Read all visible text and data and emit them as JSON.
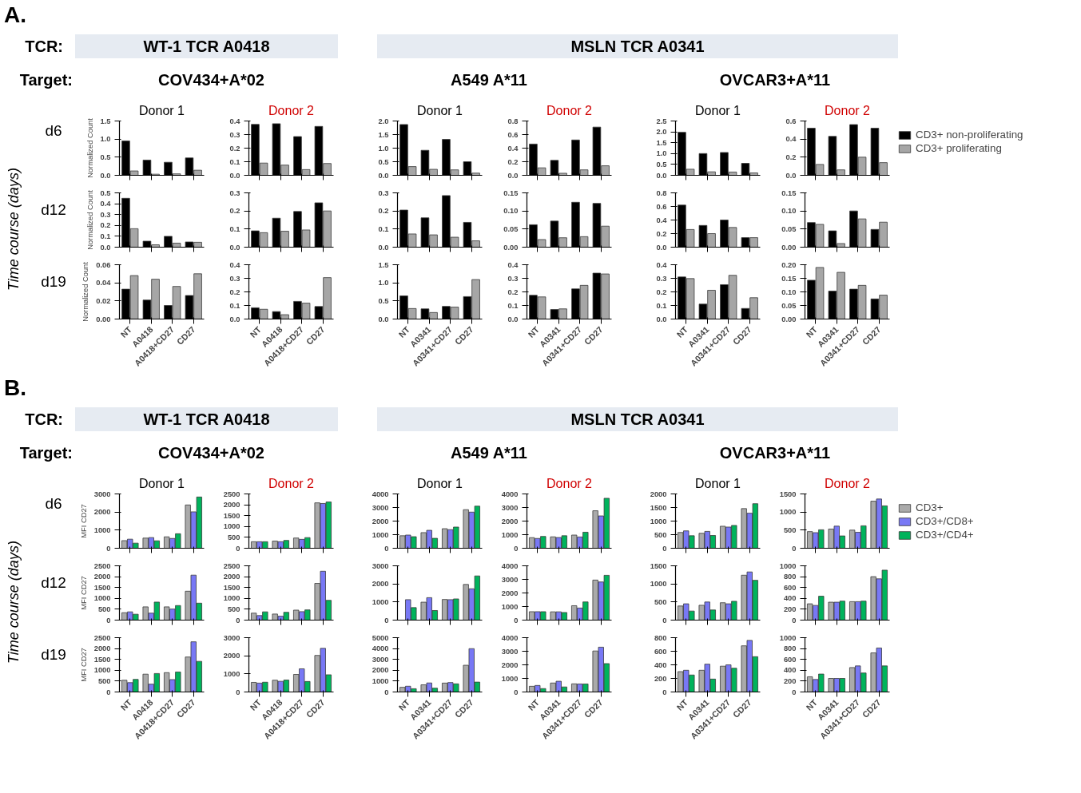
{
  "chart_data": [
    {
      "type": "bar",
      "title": "Donor 1",
      "ylabel": "Normalized Count",
      "categories": [
        null,
        null,
        null,
        null
      ],
      "series": [
        {
          "color": "#000000",
          "values": [
            0.95,
            0.42,
            0.36,
            0.48
          ]
        },
        {
          "color": "#a6a6a6",
          "values": [
            0.12,
            0.03,
            0.04,
            0.14
          ]
        }
      ],
      "ylim": [
        0,
        1.5
      ],
      "yticks": [
        {
          "value": 0,
          "label": "0.0"
        },
        0.5,
        {
          "value": 1,
          "label": "1.0"
        },
        1.5
      ],
      "tick_labels": "y",
      "annotations": [
        "A.",
        "TCR:",
        "WT-1 TCR A0418",
        "MSLN TCR A0341",
        "Target:",
        "COV434+A*02",
        "A549 A*11",
        "OVCAR3+A*11",
        "Time course (days)",
        "d6",
        "d12",
        "d19"
      ]
    },
    {
      "type": "bar",
      "title": "Donor 2",
      "categories": [
        null,
        null,
        null,
        null
      ],
      "series": [
        {
          "color": "#000000",
          "values": [
            0.375,
            0.38,
            0.285,
            0.36
          ]
        },
        {
          "color": "#a6a6a6",
          "values": [
            0.09,
            0.075,
            0.042,
            0.087
          ]
        }
      ],
      "ylim": [
        0,
        0.4
      ],
      "yticks": [
        {
          "value": 0,
          "label": "0.0"
        },
        0.1,
        0.2,
        0.3,
        0.4
      ],
      "tick_labels": "y"
    },
    {
      "type": "bar",
      "title": "Donor 1",
      "categories": [
        null,
        null,
        null,
        null
      ],
      "series": [
        {
          "color": "#000000",
          "values": [
            1.87,
            0.92,
            1.32,
            0.5
          ]
        },
        {
          "color": "#a6a6a6",
          "values": [
            0.32,
            0.22,
            0.2,
            0.08
          ]
        }
      ],
      "ylim": [
        0,
        2
      ],
      "yticks": [
        {
          "value": 0,
          "label": "0.0"
        },
        0.5,
        {
          "value": 1,
          "label": "1.0"
        },
        1.5,
        {
          "value": 2,
          "label": "2.0"
        }
      ],
      "tick_labels": "y"
    },
    {
      "type": "bar",
      "title": "Donor 2",
      "categories": [
        null,
        null,
        null,
        null
      ],
      "series": [
        {
          "color": "#000000",
          "values": [
            0.46,
            0.22,
            0.52,
            0.71
          ]
        },
        {
          "color": "#a6a6a6",
          "values": [
            0.11,
            0.03,
            0.08,
            0.14
          ]
        }
      ],
      "ylim": [
        0,
        0.8
      ],
      "yticks": [
        {
          "value": 0,
          "label": "0.0"
        },
        0.2,
        0.4,
        0.6,
        0.8
      ],
      "tick_labels": "y"
    },
    {
      "type": "bar",
      "title": "Donor 1",
      "categories": [
        null,
        null,
        null,
        null
      ],
      "series": [
        {
          "color": "#000000",
          "values": [
            1.98,
            1.0,
            1.05,
            0.55
          ]
        },
        {
          "color": "#a6a6a6",
          "values": [
            0.28,
            0.16,
            0.15,
            0.11
          ]
        }
      ],
      "ylim": [
        0,
        2.5
      ],
      "yticks": [
        {
          "value": 0,
          "label": "0.0"
        },
        0.5,
        {
          "value": 1,
          "label": "1.0"
        },
        1.5,
        {
          "value": 2,
          "label": "2.0"
        },
        2.5
      ],
      "tick_labels": "y"
    },
    {
      "type": "bar",
      "title": "Donor 2",
      "legend": "right",
      "categories": [
        null,
        null,
        null,
        null
      ],
      "series": [
        {
          "name": "CD3+ non-proliferating",
          "color": "#000000",
          "values": [
            0.52,
            0.43,
            0.56,
            0.52
          ]
        },
        {
          "name": "CD3+ proliferating",
          "color": "#a6a6a6",
          "values": [
            0.12,
            0.06,
            0.2,
            0.14
          ]
        }
      ],
      "ylim": [
        0,
        0.6
      ],
      "yticks": [
        {
          "value": 0,
          "label": "0.0"
        },
        0.2,
        0.4,
        0.6
      ],
      "tick_labels": "y"
    },
    {
      "type": "bar",
      "ylabel": "Normalized Count",
      "categories": [
        null,
        null,
        null,
        null
      ],
      "series": [
        {
          "color": "#000000",
          "values": [
            0.45,
            0.055,
            0.1,
            0.048
          ]
        },
        {
          "color": "#a6a6a6",
          "values": [
            0.17,
            0.022,
            0.037,
            0.045
          ]
        }
      ],
      "ylim": [
        0,
        0.5
      ],
      "yticks": [
        {
          "value": 0,
          "label": "0.0"
        },
        0.1,
        0.2,
        0.3,
        0.4,
        0.5
      ],
      "tick_labels": "y"
    },
    {
      "type": "bar",
      "categories": [
        null,
        null,
        null,
        null
      ],
      "series": [
        {
          "color": "#000000",
          "values": [
            0.09,
            0.16,
            0.197,
            0.245
          ]
        },
        {
          "color": "#a6a6a6",
          "values": [
            0.08,
            0.088,
            0.095,
            0.2
          ]
        }
      ],
      "ylim": [
        0,
        0.3
      ],
      "yticks": [
        {
          "value": 0,
          "label": "0.0"
        },
        0.1,
        0.2,
        0.3
      ],
      "tick_labels": "y"
    },
    {
      "type": "bar",
      "categories": [
        null,
        null,
        null,
        null
      ],
      "series": [
        {
          "color": "#000000",
          "values": [
            0.205,
            0.162,
            0.285,
            0.137
          ]
        },
        {
          "color": "#a6a6a6",
          "values": [
            0.073,
            0.068,
            0.055,
            0.035
          ]
        }
      ],
      "ylim": [
        0,
        0.3
      ],
      "yticks": [
        {
          "value": 0,
          "label": "0.0"
        },
        0.1,
        0.2,
        0.3
      ],
      "tick_labels": "y"
    },
    {
      "type": "bar",
      "categories": [
        null,
        null,
        null,
        null
      ],
      "series": [
        {
          "color": "#000000",
          "values": [
            0.062,
            0.072,
            0.124,
            0.121
          ]
        },
        {
          "color": "#a6a6a6",
          "values": [
            0.021,
            0.026,
            0.029,
            0.058
          ]
        }
      ],
      "ylim": [
        0,
        0.15
      ],
      "yticks": [
        {
          "value": 0,
          "label": "0.00"
        },
        0.05,
        {
          "value": 0.1,
          "label": "0.10"
        },
        0.15
      ],
      "tick_labels": "y"
    },
    {
      "type": "bar",
      "categories": [
        null,
        null,
        null,
        null
      ],
      "series": [
        {
          "color": "#000000",
          "values": [
            0.62,
            0.32,
            0.4,
            0.14
          ]
        },
        {
          "color": "#a6a6a6",
          "values": [
            0.26,
            0.2,
            0.29,
            0.14
          ]
        }
      ],
      "ylim": [
        0,
        0.8
      ],
      "yticks": [
        {
          "value": 0,
          "label": "0.0"
        },
        0.2,
        0.4,
        0.6,
        0.8
      ],
      "tick_labels": "y"
    },
    {
      "type": "bar",
      "categories": [
        null,
        null,
        null,
        null
      ],
      "series": [
        {
          "color": "#000000",
          "values": [
            0.068,
            0.045,
            0.1,
            0.049
          ]
        },
        {
          "color": "#a6a6a6",
          "values": [
            0.063,
            0.01,
            0.078,
            0.069
          ]
        }
      ],
      "ylim": [
        0,
        0.15
      ],
      "yticks": [
        {
          "value": 0,
          "label": "0.00"
        },
        0.05,
        {
          "value": 0.1,
          "label": "0.10"
        },
        0.15
      ],
      "tick_labels": "y"
    },
    {
      "type": "bar",
      "ylabel": "Normalized Count",
      "categories": [
        "NT",
        "A0418",
        "A0418+CD27",
        "CD27"
      ],
      "series": [
        {
          "color": "#000000",
          "values": [
            0.033,
            0.021,
            0.015,
            0.026
          ]
        },
        {
          "color": "#a6a6a6",
          "values": [
            0.048,
            0.044,
            0.036,
            0.05
          ]
        }
      ],
      "ylim": [
        0,
        0.06
      ],
      "yticks": [
        {
          "value": 0,
          "label": "0.00"
        },
        0.02,
        0.04,
        0.06
      ]
    },
    {
      "type": "bar",
      "categories": [
        "NT",
        "A0418",
        "A0418+CD27",
        "CD27"
      ],
      "series": [
        {
          "color": "#000000",
          "values": [
            0.083,
            0.055,
            0.13,
            0.092
          ]
        },
        {
          "color": "#a6a6a6",
          "values": [
            0.072,
            0.032,
            0.117,
            0.305
          ]
        }
      ],
      "ylim": [
        0,
        0.4
      ],
      "yticks": [
        {
          "value": 0,
          "label": "0.0"
        },
        0.1,
        0.2,
        0.3,
        0.4
      ]
    },
    {
      "type": "bar",
      "categories": [
        "NT",
        "A0341",
        "A0341+CD27",
        "CD27"
      ],
      "series": [
        {
          "color": "#000000",
          "values": [
            0.64,
            0.28,
            0.35,
            0.62
          ]
        },
        {
          "color": "#a6a6a6",
          "values": [
            0.29,
            0.18,
            0.33,
            1.09
          ]
        }
      ],
      "ylim": [
        0,
        1.5
      ],
      "yticks": [
        {
          "value": 0,
          "label": "0.0"
        },
        0.5,
        {
          "value": 1,
          "label": "1.0"
        },
        1.5
      ]
    },
    {
      "type": "bar",
      "categories": [
        "NT",
        "A0341",
        "A0341+CD27",
        "CD27"
      ],
      "series": [
        {
          "color": "#000000",
          "values": [
            0.175,
            0.07,
            0.222,
            0.338
          ]
        },
        {
          "color": "#a6a6a6",
          "values": [
            0.163,
            0.075,
            0.248,
            0.332
          ]
        }
      ],
      "ylim": [
        0,
        0.4
      ],
      "yticks": [
        {
          "value": 0,
          "label": "0.0"
        },
        0.1,
        0.2,
        0.3,
        0.4
      ]
    },
    {
      "type": "bar",
      "categories": [
        "NT",
        "A0341",
        "A0341+CD27",
        "CD27"
      ],
      "series": [
        {
          "color": "#000000",
          "values": [
            0.31,
            0.11,
            0.253,
            0.078
          ]
        },
        {
          "color": "#a6a6a6",
          "values": [
            0.298,
            0.212,
            0.322,
            0.157
          ]
        }
      ],
      "ylim": [
        0,
        0.4
      ],
      "yticks": [
        {
          "value": 0,
          "label": "0.0"
        },
        0.1,
        0.2,
        0.3,
        0.4
      ]
    },
    {
      "type": "bar",
      "categories": [
        "NT",
        "A0341",
        "A0341+CD27",
        "CD27"
      ],
      "series": [
        {
          "color": "#000000",
          "values": [
            0.143,
            0.103,
            0.11,
            0.074
          ]
        },
        {
          "color": "#a6a6a6",
          "values": [
            0.19,
            0.172,
            0.124,
            0.088
          ]
        }
      ],
      "ylim": [
        0,
        0.2
      ],
      "yticks": [
        {
          "value": 0,
          "label": "0.00"
        },
        0.05,
        {
          "value": 0.1,
          "label": "0.10"
        },
        0.15,
        {
          "value": 0.2,
          "label": "0.20"
        }
      ]
    },
    {
      "type": "bar",
      "title": "Donor 1",
      "ylabel": "MFI CD27",
      "categories": [
        null,
        null,
        null,
        null
      ],
      "series": [
        {
          "color": "#aaaaaa",
          "values": [
            420,
            560,
            630,
            2390
          ]
        },
        {
          "color": "#7878f5",
          "values": [
            500,
            590,
            540,
            2010
          ]
        },
        {
          "color": "#00b35c",
          "values": [
            280,
            410,
            800,
            2830
          ]
        }
      ],
      "ylim": [
        0,
        3000
      ],
      "yticks": [
        0,
        1000,
        2000,
        3000
      ],
      "tick_labels": "y",
      "annotations": [
        "B.",
        "TCR:",
        "WT-1 TCR A0418",
        "MSLN TCR A0341",
        "Target:",
        "COV434+A*02",
        "A549 A*11",
        "OVCAR3+A*11",
        "Time course (days)",
        "d6",
        "d12",
        "d19"
      ]
    },
    {
      "type": "bar",
      "title": "Donor 2",
      "categories": [
        null,
        null,
        null,
        null
      ],
      "series": [
        {
          "color": "#aaaaaa",
          "values": [
            300,
            330,
            470,
            2090
          ]
        },
        {
          "color": "#7878f5",
          "values": [
            300,
            300,
            410,
            2060
          ]
        },
        {
          "color": "#00b35c",
          "values": [
            300,
            360,
            490,
            2130
          ]
        }
      ],
      "ylim": [
        0,
        2500
      ],
      "yticks": [
        0,
        500,
        1000,
        1500,
        2000,
        2500
      ],
      "tick_labels": "y"
    },
    {
      "type": "bar",
      "title": "Donor 1",
      "categories": [
        null,
        null,
        null,
        null
      ],
      "series": [
        {
          "color": "#aaaaaa",
          "values": [
            920,
            1150,
            1440,
            2840
          ]
        },
        {
          "color": "#7878f5",
          "values": [
            970,
            1320,
            1370,
            2660
          ]
        },
        {
          "color": "#00b35c",
          "values": [
            850,
            730,
            1560,
            3100
          ]
        }
      ],
      "ylim": [
        0,
        4000
      ],
      "yticks": [
        0,
        1000,
        2000,
        3000,
        4000
      ],
      "tick_labels": "y"
    },
    {
      "type": "bar",
      "title": "Donor 2",
      "categories": [
        null,
        null,
        null,
        null
      ],
      "series": [
        {
          "color": "#aaaaaa",
          "values": [
            780,
            840,
            970,
            2760
          ]
        },
        {
          "color": "#7878f5",
          "values": [
            720,
            790,
            830,
            2380
          ]
        },
        {
          "color": "#00b35c",
          "values": [
            870,
            920,
            1180,
            3680
          ]
        }
      ],
      "ylim": [
        0,
        4000
      ],
      "yticks": [
        0,
        1000,
        2000,
        3000,
        4000
      ],
      "tick_labels": "y"
    },
    {
      "type": "bar",
      "title": "Donor 1",
      "categories": [
        null,
        null,
        null,
        null
      ],
      "series": [
        {
          "color": "#aaaaaa",
          "values": [
            580,
            550,
            810,
            1460
          ]
        },
        {
          "color": "#7878f5",
          "values": [
            640,
            620,
            780,
            1290
          ]
        },
        {
          "color": "#00b35c",
          "values": [
            460,
            470,
            840,
            1640
          ]
        }
      ],
      "ylim": [
        0,
        2000
      ],
      "yticks": [
        0,
        500,
        1000,
        1500,
        2000
      ],
      "tick_labels": "y"
    },
    {
      "type": "bar",
      "title": "Donor 2",
      "legend": "right",
      "categories": [
        null,
        null,
        null,
        null
      ],
      "series": [
        {
          "name": "CD3+",
          "color": "#aaaaaa",
          "values": [
            460,
            530,
            500,
            1300
          ]
        },
        {
          "name": "CD3+/CD8+",
          "color": "#7878f5",
          "values": [
            430,
            610,
            440,
            1360
          ]
        },
        {
          "name": "CD3+/CD4+",
          "color": "#00b35c",
          "values": [
            510,
            340,
            620,
            1170
          ]
        }
      ],
      "ylim": [
        0,
        1500
      ],
      "yticks": [
        0,
        500,
        1000,
        1500
      ],
      "tick_labels": "y"
    },
    {
      "type": "bar",
      "ylabel": "MFI CD27",
      "categories": [
        null,
        null,
        null,
        null
      ],
      "series": [
        {
          "color": "#aaaaaa",
          "values": [
            340,
            610,
            610,
            1330
          ]
        },
        {
          "color": "#7878f5",
          "values": [
            380,
            320,
            510,
            2070
          ]
        },
        {
          "color": "#00b35c",
          "values": [
            270,
            830,
            670,
            780
          ]
        }
      ],
      "ylim": [
        0,
        2500
      ],
      "yticks": [
        0,
        500,
        1000,
        1500,
        2000,
        2500
      ],
      "tick_labels": "y"
    },
    {
      "type": "bar",
      "categories": [
        null,
        null,
        null,
        null
      ],
      "series": [
        {
          "color": "#aaaaaa",
          "values": [
            320,
            280,
            460,
            1690
          ]
        },
        {
          "color": "#7878f5",
          "values": [
            210,
            180,
            390,
            2250
          ]
        },
        {
          "color": "#00b35c",
          "values": [
            380,
            360,
            470,
            910
          ]
        }
      ],
      "ylim": [
        0,
        2500
      ],
      "yticks": [
        0,
        500,
        1000,
        1500,
        2000,
        2500
      ],
      "tick_labels": "y"
    },
    {
      "type": "bar",
      "categories": [
        null,
        null,
        null,
        null
      ],
      "series": [
        {
          "color": "#aaaaaa",
          "values": [
            null,
            990,
            1140,
            1970
          ]
        },
        {
          "color": "#7878f5",
          "values": [
            1130,
            1240,
            1130,
            1730
          ]
        },
        {
          "color": "#00b35c",
          "values": [
            690,
            530,
            1170,
            2440
          ]
        }
      ],
      "ylim": [
        0,
        3000
      ],
      "yticks": [
        0,
        1000,
        2000,
        3000
      ],
      "tick_labels": "y"
    },
    {
      "type": "bar",
      "categories": [
        null,
        null,
        null,
        null
      ],
      "series": [
        {
          "color": "#aaaaaa",
          "values": [
            620,
            610,
            1060,
            2950
          ]
        },
        {
          "color": "#7878f5",
          "values": [
            620,
            610,
            890,
            2810
          ]
        },
        {
          "color": "#00b35c",
          "values": [
            620,
            560,
            1340,
            3300
          ]
        }
      ],
      "ylim": [
        0,
        4000
      ],
      "yticks": [
        0,
        1000,
        2000,
        3000,
        4000
      ],
      "tick_labels": "y"
    },
    {
      "type": "bar",
      "categories": [
        null,
        null,
        null,
        null
      ],
      "series": [
        {
          "color": "#aaaaaa",
          "values": [
            390,
            410,
            480,
            1240
          ]
        },
        {
          "color": "#7878f5",
          "values": [
            450,
            500,
            450,
            1330
          ]
        },
        {
          "color": "#00b35c",
          "values": [
            250,
            280,
            520,
            1100
          ]
        }
      ],
      "ylim": [
        0,
        1500
      ],
      "yticks": [
        0,
        500,
        1000,
        1500
      ],
      "tick_labels": "y"
    },
    {
      "type": "bar",
      "categories": [
        null,
        null,
        null,
        null
      ],
      "series": [
        {
          "color": "#aaaaaa",
          "values": [
            300,
            330,
            340,
            800
          ]
        },
        {
          "color": "#7878f5",
          "values": [
            270,
            330,
            340,
            760
          ]
        },
        {
          "color": "#00b35c",
          "values": [
            440,
            350,
            350,
            920
          ]
        }
      ],
      "ylim": [
        0,
        1000
      ],
      "yticks": [
        0,
        200,
        400,
        600,
        800,
        1000
      ],
      "tick_labels": "y"
    },
    {
      "type": "bar",
      "ylabel": "MFI CD27",
      "categories": [
        "NT",
        "A0418",
        "A0418+CD27",
        "CD27"
      ],
      "series": [
        {
          "color": "#aaaaaa",
          "values": [
            540,
            820,
            890,
            1610
          ]
        },
        {
          "color": "#7878f5",
          "values": [
            430,
            360,
            570,
            2310
          ]
        },
        {
          "color": "#00b35c",
          "values": [
            580,
            850,
            920,
            1410
          ]
        }
      ],
      "ylim": [
        0,
        2500
      ],
      "yticks": [
        0,
        500,
        1000,
        1500,
        2000,
        2500
      ]
    },
    {
      "type": "bar",
      "categories": [
        "NT",
        "A0418",
        "A0418+CD27",
        "CD27"
      ],
      "series": [
        {
          "color": "#aaaaaa",
          "values": [
            530,
            650,
            970,
            2020
          ]
        },
        {
          "color": "#7878f5",
          "values": [
            490,
            590,
            1280,
            2410
          ]
        },
        {
          "color": "#00b35c",
          "values": [
            540,
            660,
            580,
            950
          ]
        }
      ],
      "ylim": [
        0,
        3000
      ],
      "yticks": [
        0,
        1000,
        2000,
        3000
      ]
    },
    {
      "type": "bar",
      "categories": [
        "NT",
        "A0341",
        "A0341+CD27",
        "CD27"
      ],
      "series": [
        {
          "color": "#aaaaaa",
          "values": [
            430,
            660,
            820,
            2460
          ]
        },
        {
          "color": "#7878f5",
          "values": [
            530,
            830,
            870,
            3990
          ]
        },
        {
          "color": "#00b35c",
          "values": [
            300,
            350,
            750,
            910
          ]
        }
      ],
      "ylim": [
        0,
        5000
      ],
      "yticks": [
        0,
        1000,
        2000,
        3000,
        4000,
        5000
      ]
    },
    {
      "type": "bar",
      "categories": [
        "NT",
        "A0341",
        "A0341+CD27",
        "CD27"
      ],
      "series": [
        {
          "color": "#aaaaaa",
          "values": [
            420,
            660,
            600,
            3020
          ]
        },
        {
          "color": "#7878f5",
          "values": [
            480,
            790,
            590,
            3300
          ]
        },
        {
          "color": "#00b35c",
          "values": [
            250,
            370,
            590,
            2090
          ]
        }
      ],
      "ylim": [
        0,
        4000
      ],
      "yticks": [
        0,
        1000,
        2000,
        3000,
        4000
      ]
    },
    {
      "type": "bar",
      "categories": [
        "NT",
        "A0341",
        "A0341+CD27",
        "CD27"
      ],
      "series": [
        {
          "color": "#aaaaaa",
          "values": [
            300,
            320,
            380,
            680
          ]
        },
        {
          "color": "#7878f5",
          "values": [
            320,
            410,
            400,
            760
          ]
        },
        {
          "color": "#00b35c",
          "values": [
            250,
            190,
            350,
            520
          ]
        }
      ],
      "ylim": [
        0,
        800
      ],
      "yticks": [
        0,
        200,
        400,
        600,
        800
      ]
    },
    {
      "type": "bar",
      "categories": [
        "NT",
        "A0341",
        "A0341+CD27",
        "CD27"
      ],
      "series": [
        {
          "color": "#aaaaaa",
          "values": [
            280,
            250,
            450,
            720
          ]
        },
        {
          "color": "#7878f5",
          "values": [
            230,
            250,
            480,
            810
          ]
        },
        {
          "color": "#00b35c",
          "values": [
            330,
            250,
            350,
            480
          ]
        }
      ],
      "ylim": [
        0,
        1000
      ],
      "yticks": [
        0,
        200,
        400,
        600,
        800,
        1000
      ]
    }
  ]
}
